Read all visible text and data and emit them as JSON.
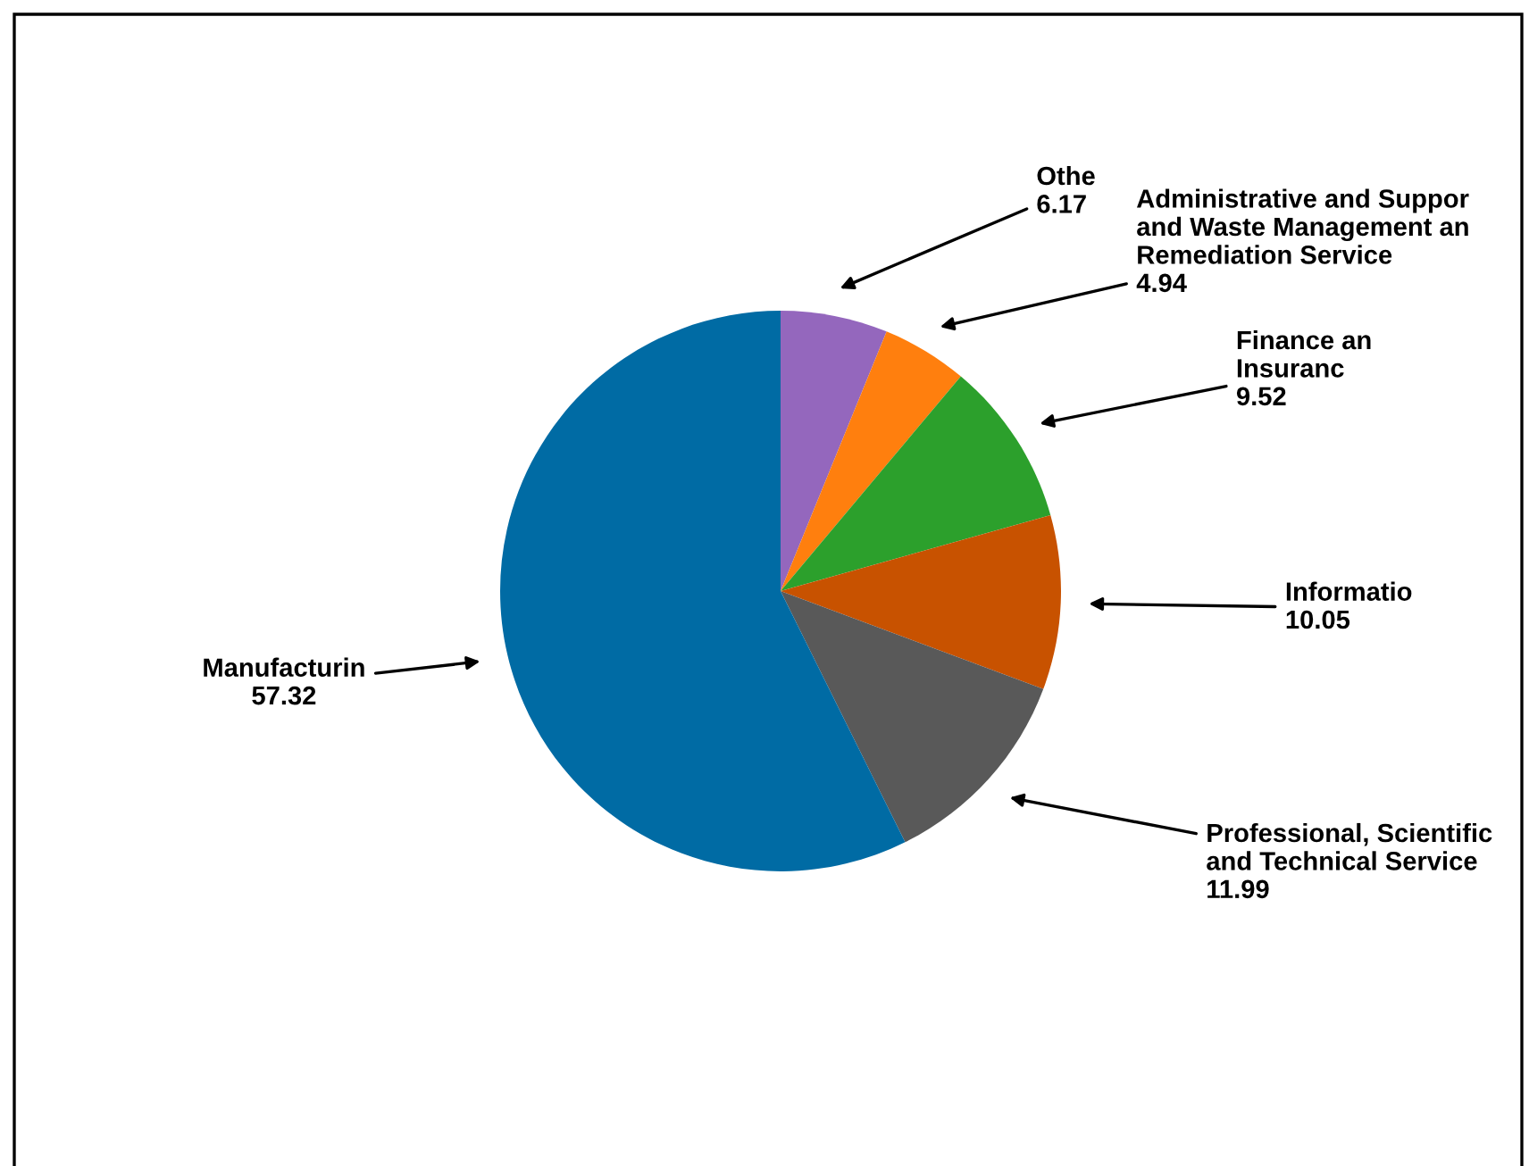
{
  "chart_data": {
    "type": "pie",
    "categories": [
      "Othe",
      "Administrative and Suppor\nand Waste Management an\nRemediation Service",
      "Finance an\nInsuranc",
      "Informatio",
      "Professional, Scientific\nand Technical Service",
      "Manufacturin"
    ],
    "values": [
      6.17,
      4.94,
      9.52,
      10.05,
      11.99,
      57.32
    ],
    "colors": [
      "#9467bd",
      "#ff7f0e",
      "#2ca02c",
      "#c85200",
      "#595959",
      "#006ba4"
    ],
    "data_labels": true,
    "legend": false
  }
}
